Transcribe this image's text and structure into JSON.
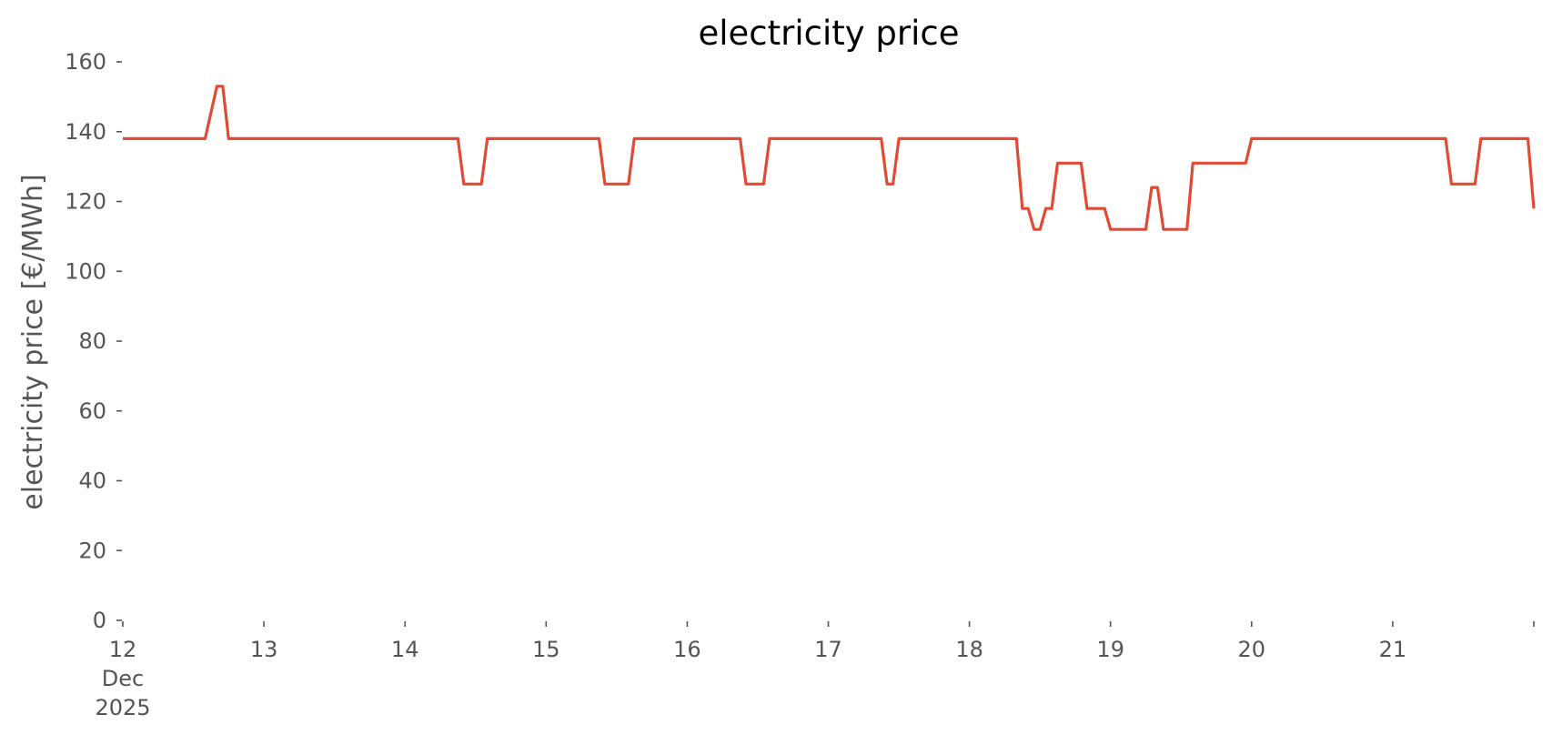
{
  "chart_data": {
    "type": "line",
    "title": "electricity price",
    "xlabel": "",
    "ylabel": "electricity price [€/MWh]",
    "ylim": [
      0,
      160
    ],
    "y_ticks": [
      0,
      20,
      40,
      60,
      80,
      100,
      120,
      140,
      160
    ],
    "xlim": [
      "2025-12-12T00:00",
      "2025-12-22T00:00"
    ],
    "x_ticks": [
      {
        "date": "2025-12-12",
        "lines": [
          "12",
          "Dec",
          "2025"
        ]
      },
      {
        "date": "2025-12-13",
        "lines": [
          "13"
        ]
      },
      {
        "date": "2025-12-14",
        "lines": [
          "14"
        ]
      },
      {
        "date": "2025-12-15",
        "lines": [
          "15"
        ]
      },
      {
        "date": "2025-12-16",
        "lines": [
          "16"
        ]
      },
      {
        "date": "2025-12-17",
        "lines": [
          "17"
        ]
      },
      {
        "date": "2025-12-18",
        "lines": [
          "18"
        ]
      },
      {
        "date": "2025-12-19",
        "lines": [
          "19"
        ]
      },
      {
        "date": "2025-12-20",
        "lines": [
          "20"
        ]
      },
      {
        "date": "2025-12-21",
        "lines": [
          "21"
        ]
      },
      {
        "date": "2025-12-22",
        "lines": [
          ""
        ]
      }
    ],
    "grid": false,
    "series_color": "#E24A33",
    "series": [
      {
        "x": [
          "2025-12-12T00:00",
          "2025-12-12T14:00",
          "2025-12-12T16:00",
          "2025-12-12T17:00",
          "2025-12-12T18:00",
          "2025-12-12T19:00",
          "2025-12-14T09:00",
          "2025-12-14T10:00",
          "2025-12-14T13:00",
          "2025-12-14T14:00",
          "2025-12-15T09:00",
          "2025-12-15T10:00",
          "2025-12-15T14:00",
          "2025-12-15T15:00",
          "2025-12-16T09:00",
          "2025-12-16T10:00",
          "2025-12-16T13:00",
          "2025-12-16T14:00",
          "2025-12-17T09:00",
          "2025-12-17T10:00",
          "2025-12-17T11:00",
          "2025-12-17T12:00",
          "2025-12-18T08:00",
          "2025-12-18T09:00",
          "2025-12-18T10:00",
          "2025-12-18T11:00",
          "2025-12-18T12:00",
          "2025-12-18T13:00",
          "2025-12-18T14:00",
          "2025-12-18T15:00",
          "2025-12-18T19:00",
          "2025-12-18T20:00",
          "2025-12-18T23:00",
          "2025-12-19T00:00",
          "2025-12-19T06:00",
          "2025-12-19T07:00",
          "2025-12-19T08:00",
          "2025-12-19T09:00",
          "2025-12-19T13:00",
          "2025-12-19T14:00",
          "2025-12-19T23:00",
          "2025-12-20T00:00",
          "2025-12-21T09:00",
          "2025-12-21T10:00",
          "2025-12-21T14:00",
          "2025-12-21T15:00",
          "2025-12-21T23:00",
          "2025-12-22T00:00"
        ],
        "values": [
          138,
          138,
          153,
          153,
          138,
          138,
          138,
          125,
          125,
          138,
          138,
          125,
          125,
          138,
          138,
          125,
          125,
          138,
          138,
          125,
          125,
          138,
          138,
          118,
          118,
          112,
          112,
          118,
          118,
          131,
          131,
          118,
          118,
          112,
          112,
          124,
          124,
          112,
          112,
          131,
          131,
          138,
          138,
          125,
          125,
          138,
          138,
          118
        ]
      }
    ]
  }
}
